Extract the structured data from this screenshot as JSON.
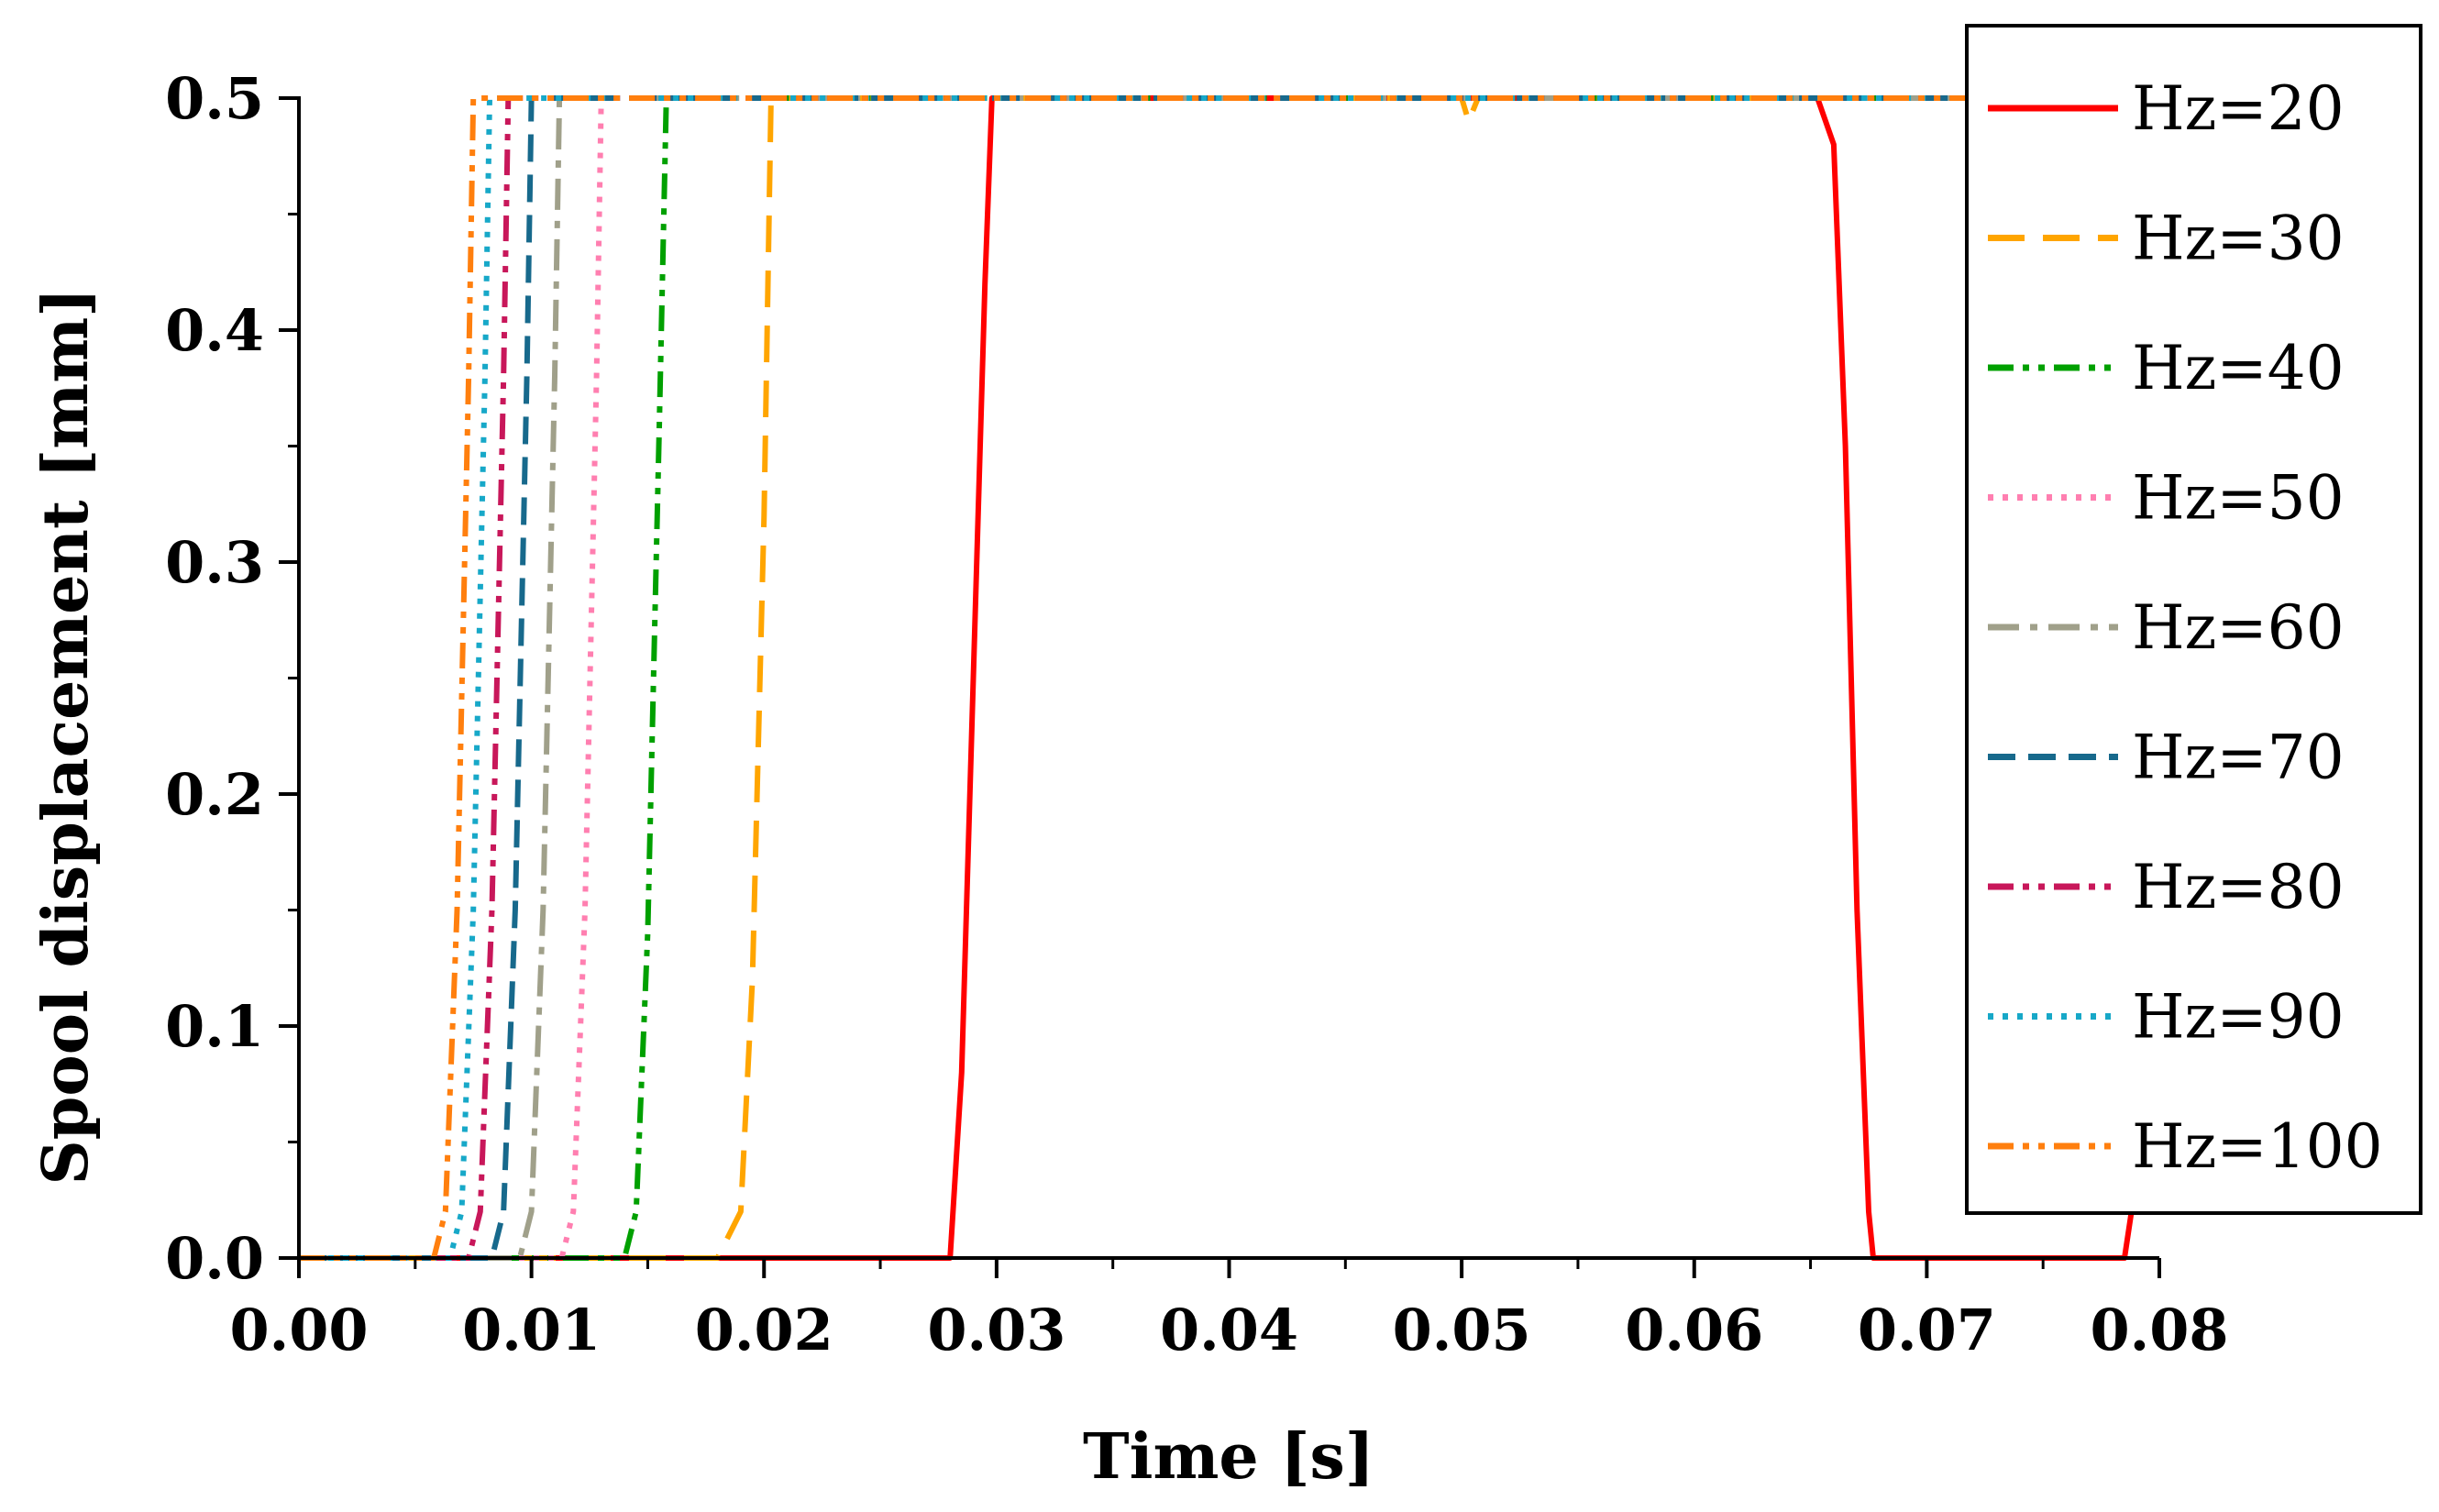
{
  "chart_data": {
    "type": "line",
    "xlabel": "Time [s]",
    "ylabel": "Spool displacement [mm]",
    "xlim": [
      0,
      0.08
    ],
    "ylim": [
      0,
      0.5
    ],
    "x_ticks": [
      "0.00",
      "0.01",
      "0.02",
      "0.03",
      "0.04",
      "0.05",
      "0.06",
      "0.07",
      "0.08"
    ],
    "y_ticks": [
      "0.0",
      "0.1",
      "0.2",
      "0.3",
      "0.4",
      "0.5"
    ],
    "grid": false,
    "legend_position": "top-right",
    "series": [
      {
        "name": "Hz=20",
        "color": "#ff0000",
        "dash": "solid",
        "points": [
          [
            0,
            0
          ],
          [
            0.028,
            0
          ],
          [
            0.0285,
            0.08
          ],
          [
            0.029,
            0.25
          ],
          [
            0.0295,
            0.42
          ],
          [
            0.0298,
            0.5
          ],
          [
            0.0653,
            0.5
          ],
          [
            0.066,
            0.48
          ],
          [
            0.0665,
            0.35
          ],
          [
            0.067,
            0.15
          ],
          [
            0.0675,
            0.02
          ],
          [
            0.0677,
            0
          ],
          [
            0.0785,
            0
          ],
          [
            0.0788,
            0.02
          ]
        ]
      },
      {
        "name": "Hz=30",
        "color": "#ffa500",
        "dash": "long-dash",
        "points": [
          [
            0,
            0
          ],
          [
            0.018,
            0
          ],
          [
            0.019,
            0.02
          ],
          [
            0.0195,
            0.12
          ],
          [
            0.02,
            0.32
          ],
          [
            0.0203,
            0.5
          ],
          [
            0.05,
            0.5
          ],
          [
            0.0503,
            0.49
          ],
          [
            0.0507,
            0.5
          ],
          [
            0.08,
            0.5
          ]
        ]
      },
      {
        "name": "Hz=40",
        "color": "#00a000",
        "dash": "dash-dot-dot",
        "points": [
          [
            0,
            0
          ],
          [
            0.014,
            0
          ],
          [
            0.0145,
            0.02
          ],
          [
            0.015,
            0.14
          ],
          [
            0.0155,
            0.36
          ],
          [
            0.0158,
            0.5
          ],
          [
            0.08,
            0.5
          ]
        ]
      },
      {
        "name": "Hz=50",
        "color": "#ff7fb0",
        "dash": "dot",
        "points": [
          [
            0,
            0
          ],
          [
            0.0113,
            0
          ],
          [
            0.0118,
            0.02
          ],
          [
            0.0123,
            0.15
          ],
          [
            0.0128,
            0.38
          ],
          [
            0.013,
            0.5
          ],
          [
            0.08,
            0.5
          ]
        ]
      },
      {
        "name": "Hz=60",
        "color": "#a0a08a",
        "dash": "dash-dot",
        "points": [
          [
            0,
            0
          ],
          [
            0.0095,
            0
          ],
          [
            0.01,
            0.02
          ],
          [
            0.0105,
            0.15
          ],
          [
            0.011,
            0.38
          ],
          [
            0.0112,
            0.5
          ],
          [
            0.08,
            0.5
          ]
        ]
      },
      {
        "name": "Hz=70",
        "color": "#17698c",
        "dash": "dash",
        "points": [
          [
            0,
            0
          ],
          [
            0.0083,
            0
          ],
          [
            0.0088,
            0.02
          ],
          [
            0.0093,
            0.15
          ],
          [
            0.0098,
            0.38
          ],
          [
            0.01,
            0.5
          ],
          [
            0.08,
            0.5
          ]
        ]
      },
      {
        "name": "Hz=80",
        "color": "#c8175a",
        "dash": "dash-dot-dot",
        "points": [
          [
            0,
            0
          ],
          [
            0.0073,
            0
          ],
          [
            0.0078,
            0.02
          ],
          [
            0.0083,
            0.15
          ],
          [
            0.0088,
            0.38
          ],
          [
            0.009,
            0.5
          ],
          [
            0.08,
            0.5
          ]
        ]
      },
      {
        "name": "Hz=90",
        "color": "#17a8c8",
        "dash": "dot",
        "points": [
          [
            0,
            0
          ],
          [
            0.0065,
            0
          ],
          [
            0.007,
            0.02
          ],
          [
            0.0075,
            0.15
          ],
          [
            0.008,
            0.38
          ],
          [
            0.0082,
            0.5
          ],
          [
            0.08,
            0.5
          ]
        ]
      },
      {
        "name": "Hz=100",
        "color": "#ff7f0e",
        "dash": "dash-dot-dot",
        "points": [
          [
            0,
            0
          ],
          [
            0.0058,
            0
          ],
          [
            0.0063,
            0.02
          ],
          [
            0.0068,
            0.15
          ],
          [
            0.0073,
            0.38
          ],
          [
            0.0075,
            0.5
          ],
          [
            0.08,
            0.5
          ]
        ]
      }
    ]
  }
}
